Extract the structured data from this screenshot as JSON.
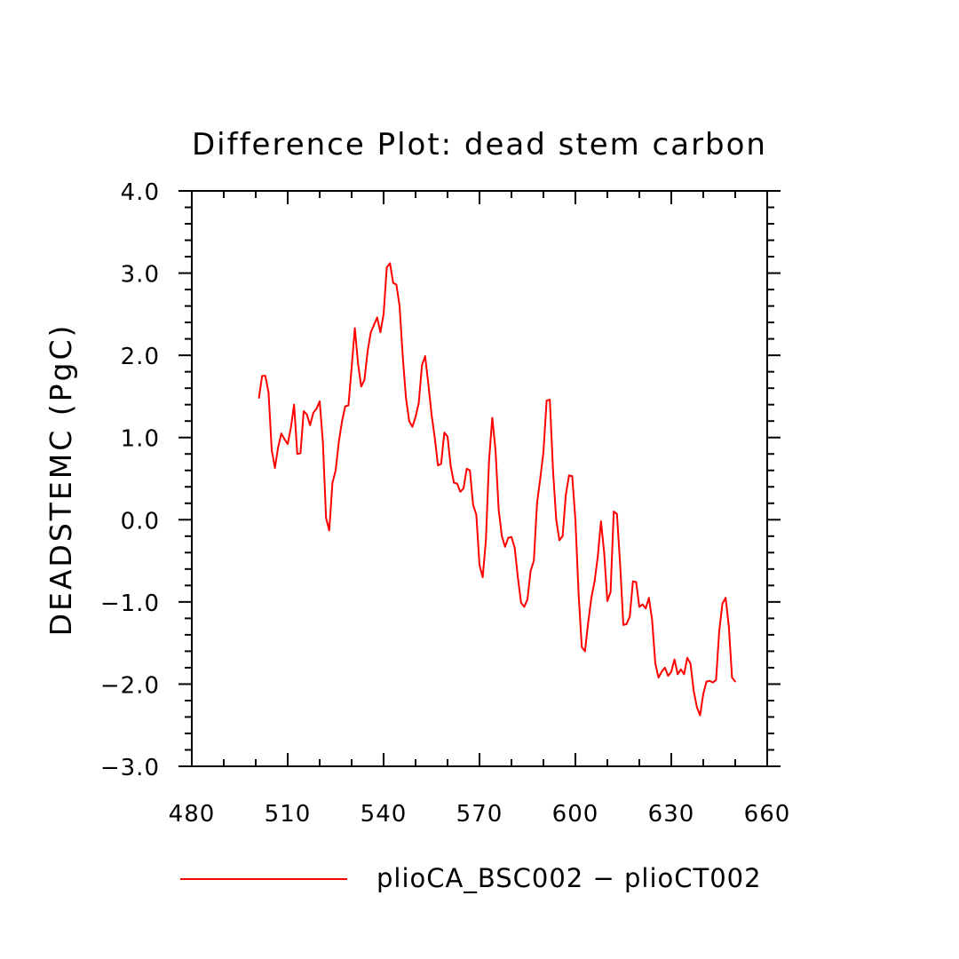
{
  "chart_data": {
    "type": "line",
    "title": "Difference Plot: dead stem carbon",
    "xlabel": "",
    "ylabel": "DEADSTEMC (PgC)",
    "xlim": [
      480,
      660
    ],
    "ylim": [
      -3.0,
      4.0
    ],
    "x_ticks": [
      480,
      510,
      540,
      570,
      600,
      630,
      660
    ],
    "x_tick_labels": [
      "480",
      "510",
      "540",
      "570",
      "600",
      "630",
      "660"
    ],
    "y_ticks": [
      -3.0,
      -2.0,
      -1.0,
      0.0,
      1.0,
      2.0,
      3.0,
      4.0
    ],
    "y_tick_labels": [
      "−3.0",
      "−2.0",
      "−1.0",
      "0.0",
      "1.0",
      "2.0",
      "3.0",
      "4.0"
    ],
    "grid": false,
    "legend_position": "bottom",
    "series": [
      {
        "name": "plioCA_BSC002 − plioCT002",
        "color": "#ff0000",
        "x": [
          501,
          502,
          503,
          504,
          505,
          506,
          507,
          508,
          509,
          510,
          511,
          512,
          513,
          514,
          515,
          516,
          517,
          518,
          519,
          520,
          521,
          522,
          523,
          524,
          525,
          526,
          527,
          528,
          529,
          530,
          531,
          532,
          533,
          534,
          535,
          536,
          537,
          538,
          539,
          540,
          541,
          542,
          543,
          544,
          545,
          546,
          547,
          548,
          549,
          550,
          551,
          552,
          553,
          554,
          555,
          556,
          557,
          558,
          559,
          560,
          561,
          562,
          563,
          564,
          565,
          566,
          567,
          568,
          569,
          570,
          571,
          572,
          573,
          574,
          575,
          576,
          577,
          578,
          579,
          580,
          581,
          582,
          583,
          584,
          585,
          586,
          587,
          588,
          589,
          590,
          591,
          592,
          593,
          594,
          595,
          596,
          597,
          598,
          599,
          600,
          601,
          602,
          603,
          604,
          605,
          606,
          607,
          608,
          609,
          610,
          611,
          612,
          613,
          614,
          615,
          616,
          617,
          618,
          619,
          620,
          621,
          622,
          623,
          624,
          625,
          626,
          627,
          628,
          629,
          630,
          631,
          632,
          633,
          634,
          635,
          636,
          637,
          638,
          639,
          640,
          641,
          642,
          643,
          644,
          645,
          646,
          647,
          648,
          649,
          650
        ],
        "y": [
          1.48,
          1.75,
          1.75,
          1.55,
          0.85,
          0.63,
          0.88,
          1.05,
          0.98,
          0.92,
          1.12,
          1.4,
          0.8,
          0.81,
          1.32,
          1.28,
          1.15,
          1.3,
          1.35,
          1.44,
          0.95,
          0.02,
          -0.13,
          0.45,
          0.6,
          0.95,
          1.2,
          1.38,
          1.39,
          1.85,
          2.33,
          1.9,
          1.62,
          1.7,
          2.05,
          2.28,
          2.37,
          2.46,
          2.28,
          2.5,
          3.07,
          3.12,
          2.88,
          2.86,
          2.6,
          1.98,
          1.48,
          1.2,
          1.13,
          1.25,
          1.42,
          1.88,
          1.99,
          1.65,
          1.28,
          1.0,
          0.66,
          0.68,
          1.06,
          1.01,
          0.65,
          0.45,
          0.44,
          0.34,
          0.38,
          0.62,
          0.6,
          0.18,
          0.06,
          -0.55,
          -0.7,
          -0.25,
          0.73,
          1.24,
          0.85,
          0.12,
          -0.2,
          -0.33,
          -0.22,
          -0.21,
          -0.34,
          -0.7,
          -1.01,
          -1.06,
          -0.97,
          -0.62,
          -0.5,
          0.2,
          0.5,
          0.82,
          1.45,
          1.46,
          0.6,
          0.0,
          -0.25,
          -0.2,
          0.3,
          0.54,
          0.53,
          0.0,
          -0.9,
          -1.55,
          -1.6,
          -1.25,
          -0.95,
          -0.75,
          -0.45,
          -0.02,
          -0.4,
          -0.99,
          -0.88,
          0.1,
          0.07,
          -0.55,
          -1.28,
          -1.27,
          -1.18,
          -0.75,
          -0.76,
          -1.06,
          -1.03,
          -1.08,
          -0.95,
          -1.22,
          -1.75,
          -1.92,
          -1.85,
          -1.8,
          -1.9,
          -1.85,
          -1.7,
          -1.88,
          -1.82,
          -1.88,
          -1.68,
          -1.75,
          -2.08,
          -2.28,
          -2.38,
          -2.12,
          -1.97,
          -1.96,
          -1.98,
          -1.95,
          -1.35,
          -1.02,
          -0.95,
          -1.3,
          -1.92,
          -1.97
        ]
      }
    ]
  }
}
